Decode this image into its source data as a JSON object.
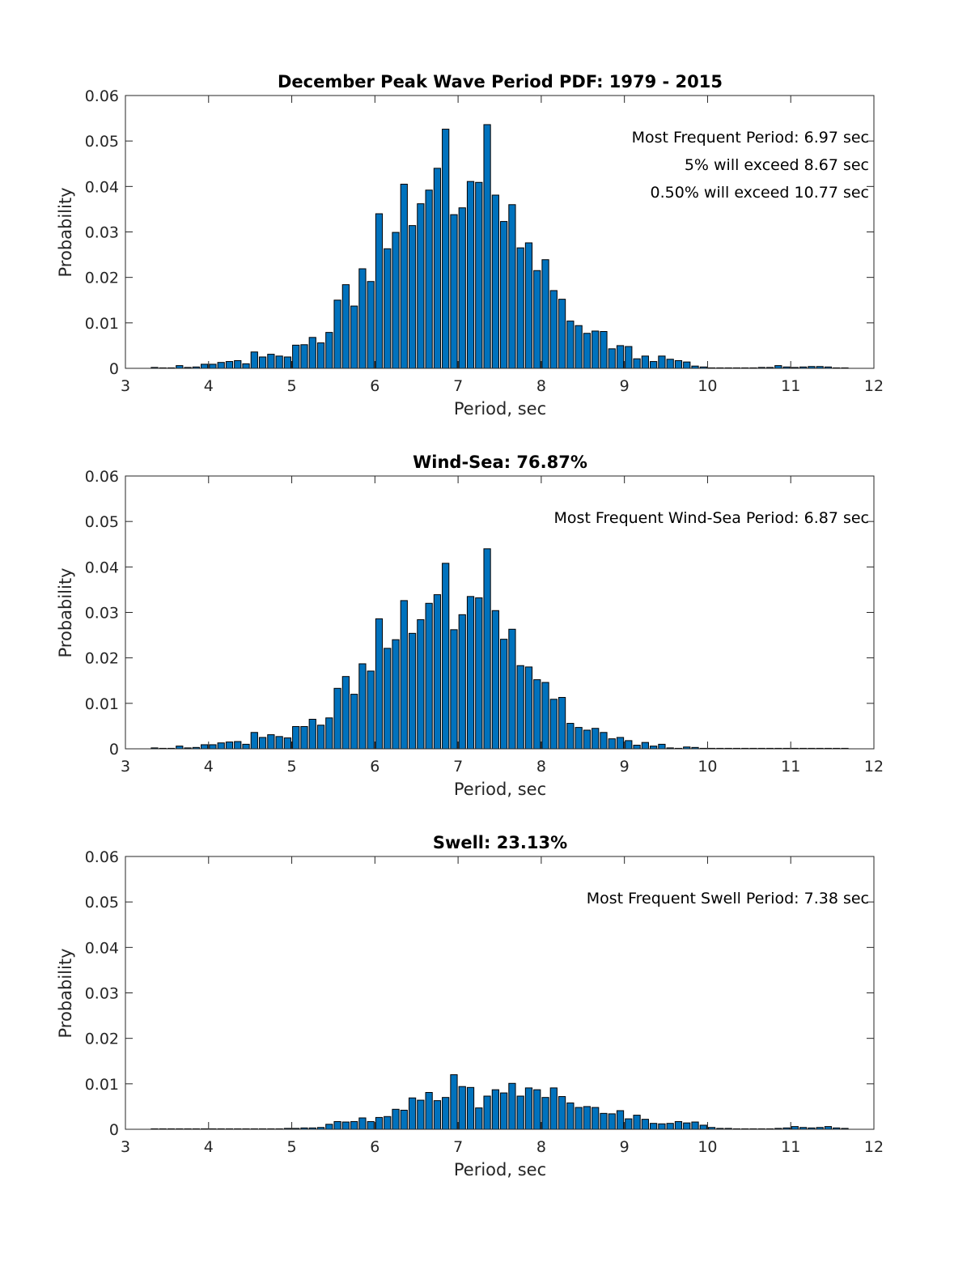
{
  "chart_data": [
    {
      "type": "bar",
      "title": "December Peak Wave Period PDF: 1979 - 2015",
      "xlabel": "Period, sec",
      "ylabel": "Probability",
      "xlim": [
        3,
        12
      ],
      "ylim": [
        0,
        0.06
      ],
      "xticks": [
        "3",
        "4",
        "5",
        "6",
        "7",
        "8",
        "9",
        "10",
        "11",
        "12"
      ],
      "yticks": [
        "0",
        "0.01",
        "0.02",
        "0.03",
        "0.04",
        "0.05",
        "0.06"
      ],
      "bin_start": 3.35,
      "bin_width": 0.1,
      "values": [
        0.0002,
        0,
        0,
        0.0006,
        0.0002,
        0.0003,
        0.0009,
        0.0009,
        0.0013,
        0.0015,
        0.0017,
        0.001,
        0.0036,
        0.0025,
        0.0031,
        0.0027,
        0.0025,
        0.0051,
        0.0052,
        0.0068,
        0.0056,
        0.0079,
        0.015,
        0.0184,
        0.0137,
        0.0219,
        0.0191,
        0.034,
        0.0263,
        0.0299,
        0.0405,
        0.0314,
        0.0362,
        0.0392,
        0.044,
        0.0526,
        0.0338,
        0.0353,
        0.0411,
        0.0409,
        0.0536,
        0.0381,
        0.0323,
        0.036,
        0.0265,
        0.0276,
        0.0215,
        0.0239,
        0.0171,
        0.0152,
        0.0104,
        0.0094,
        0.0077,
        0.0082,
        0.0081,
        0.0043,
        0.005,
        0.0048,
        0.0021,
        0.0027,
        0.0015,
        0.0027,
        0.002,
        0.0017,
        0.0014,
        0.0005,
        0.0003,
        0.0001,
        0,
        0,
        0.0001,
        0,
        0,
        0.0002,
        0.0002,
        0.0006,
        0.0003,
        0.0002,
        0.0003,
        0.0004,
        0.0004,
        0.0003,
        0.0001,
        0
      ],
      "annotations": [
        "Most Frequent Period: 6.97 sec",
        "5% will exceed 8.67 sec",
        "0.50% will exceed 10.77 sec"
      ]
    },
    {
      "type": "bar",
      "title": "Wind-Sea: 76.87%",
      "xlabel": "Period, sec",
      "ylabel": "Probability",
      "xlim": [
        3,
        12
      ],
      "ylim": [
        0,
        0.06
      ],
      "xticks": [
        "3",
        "4",
        "5",
        "6",
        "7",
        "8",
        "9",
        "10",
        "11",
        "12"
      ],
      "yticks": [
        "0",
        "0.01",
        "0.02",
        "0.03",
        "0.04",
        "0.05",
        "0.06"
      ],
      "bin_start": 3.35,
      "bin_width": 0.1,
      "values": [
        0.0002,
        0,
        0,
        0.0006,
        0.0002,
        0.0003,
        0.0009,
        0.0009,
        0.0013,
        0.0015,
        0.0016,
        0.001,
        0.0036,
        0.0025,
        0.0031,
        0.0027,
        0.0024,
        0.0049,
        0.0049,
        0.0065,
        0.0052,
        0.0068,
        0.0133,
        0.0159,
        0.012,
        0.0187,
        0.0171,
        0.0286,
        0.0221,
        0.024,
        0.0326,
        0.0254,
        0.0284,
        0.032,
        0.0339,
        0.0408,
        0.0262,
        0.0295,
        0.0335,
        0.0332,
        0.044,
        0.0304,
        0.0241,
        0.0263,
        0.0183,
        0.018,
        0.0152,
        0.0146,
        0.0109,
        0.0113,
        0.0056,
        0.0047,
        0.0041,
        0.0045,
        0.0036,
        0.0022,
        0.0025,
        0.0018,
        0.0008,
        0.0014,
        0.0006,
        0.001,
        0.0002,
        0,
        0.0004,
        0.0003,
        0.0001,
        0,
        0,
        0,
        0,
        0,
        0,
        0,
        0,
        0,
        0,
        0,
        0,
        0,
        0,
        0,
        0,
        0
      ],
      "annotations": [
        "Most Frequent Wind-Sea Period: 6.87 sec"
      ]
    },
    {
      "type": "bar",
      "title": "Swell: 23.13%",
      "xlabel": "Period, sec",
      "ylabel": "Probability",
      "xlim": [
        3,
        12
      ],
      "ylim": [
        0,
        0.06
      ],
      "xticks": [
        "3",
        "4",
        "5",
        "6",
        "7",
        "8",
        "9",
        "10",
        "11",
        "12"
      ],
      "yticks": [
        "0",
        "0.01",
        "0.02",
        "0.03",
        "0.04",
        "0.05",
        "0.06"
      ],
      "bin_start": 3.35,
      "bin_width": 0.1,
      "values": [
        0,
        0,
        0,
        0,
        0,
        0,
        0,
        0,
        0,
        0,
        0,
        0,
        0,
        0,
        0,
        0,
        0.0002,
        0.0002,
        0.0003,
        0.0003,
        0.0004,
        0.0011,
        0.0017,
        0.0016,
        0.0017,
        0.0025,
        0.0017,
        0.0026,
        0.0028,
        0.0044,
        0.0042,
        0.0069,
        0.0064,
        0.0081,
        0.0063,
        0.007,
        0.012,
        0.0094,
        0.0092,
        0.0047,
        0.0073,
        0.0087,
        0.008,
        0.0101,
        0.0073,
        0.0091,
        0.0087,
        0.007,
        0.0091,
        0.0072,
        0.0058,
        0.0048,
        0.005,
        0.0048,
        0.0035,
        0.0034,
        0.0041,
        0.0023,
        0.0031,
        0.0022,
        0.0013,
        0.0012,
        0.0013,
        0.0017,
        0.0014,
        0.0016,
        0.0009,
        0.0004,
        0.0002,
        0.0002,
        0.0001,
        0.0001,
        0,
        0.0001,
        0.0001,
        0.0002,
        0.0003,
        0.0006,
        0.0004,
        0.0003,
        0.0004,
        0.0006,
        0.0003,
        0.0002
      ],
      "annotations": [
        "Most Frequent Swell Period: 7.38 sec"
      ]
    }
  ]
}
